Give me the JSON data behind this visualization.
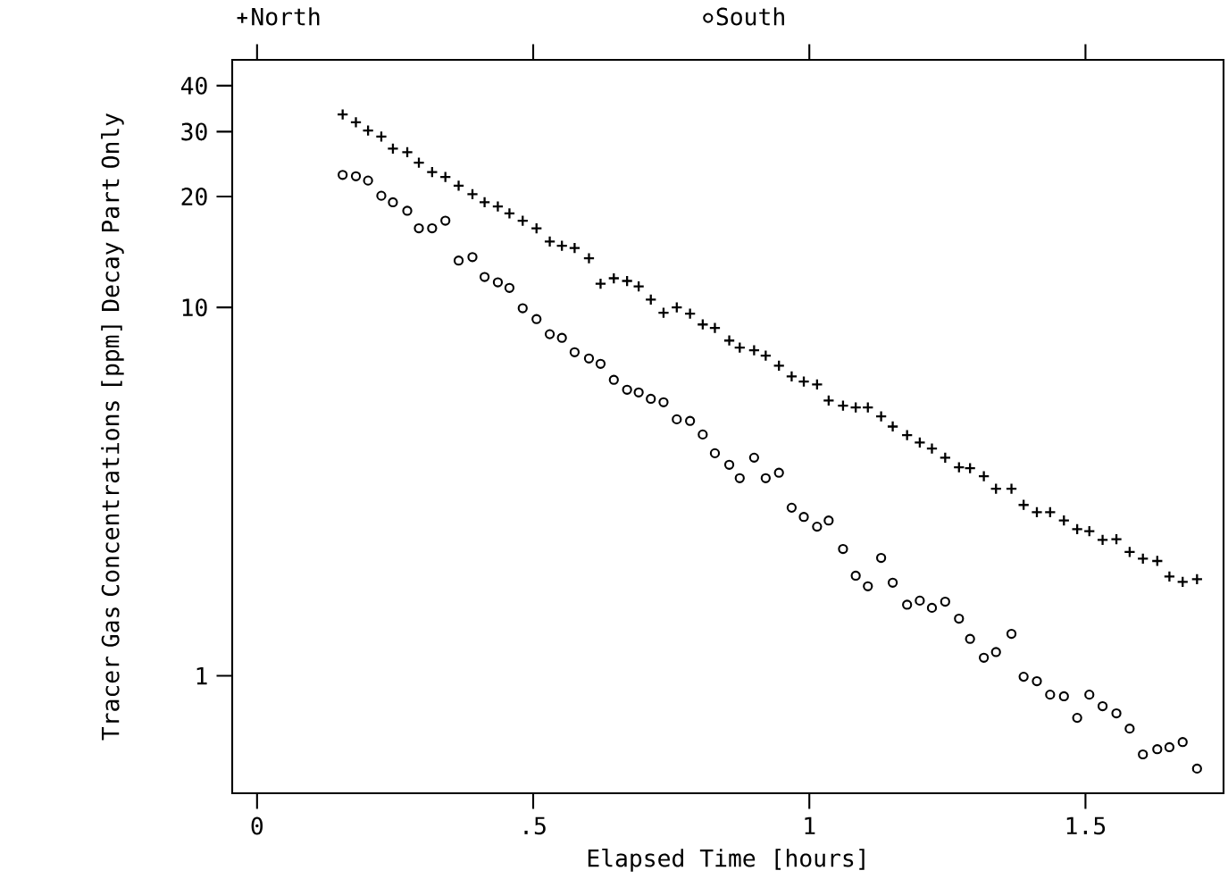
{
  "chart_data": {
    "type": "scatter",
    "xlabel": "Elapsed Time [hours]",
    "ylabel": "Tracer Gas Concentrations [ppm] Decay Part Only",
    "log": "y",
    "legend": "top",
    "grid": false,
    "xlim": [
      -0.045,
      1.75
    ],
    "ylim": [
      0.48,
      47
    ],
    "xticks": [
      0,
      {
        "value": 0.5,
        "label": ".5"
      },
      1,
      {
        "value": 1.5,
        "label": "1.5"
      }
    ],
    "yticks": [
      1,
      10,
      20,
      30,
      40
    ],
    "x": [
      0.155,
      0.179,
      0.201,
      0.225,
      0.246,
      0.272,
      0.293,
      0.317,
      0.341,
      0.365,
      0.39,
      0.412,
      0.436,
      0.457,
      0.481,
      0.506,
      0.53,
      0.552,
      0.575,
      0.601,
      0.622,
      0.646,
      0.67,
      0.691,
      0.713,
      0.736,
      0.76,
      0.784,
      0.807,
      0.829,
      0.855,
      0.874,
      0.9,
      0.921,
      0.945,
      0.968,
      0.99,
      1.014,
      1.035,
      1.061,
      1.084,
      1.106,
      1.13,
      1.151,
      1.177,
      1.2,
      1.222,
      1.246,
      1.271,
      1.291,
      1.316,
      1.338,
      1.366,
      1.388,
      1.412,
      1.436,
      1.461,
      1.485,
      1.507,
      1.531,
      1.556,
      1.58,
      1.604,
      1.63,
      1.652,
      1.676,
      1.702
    ],
    "series": [
      {
        "name": "North",
        "color": "#000000",
        "marker": "cross",
        "values": [
          33.4,
          31.8,
          30.2,
          29.1,
          27.0,
          26.4,
          24.7,
          23.3,
          22.6,
          21.4,
          20.3,
          19.3,
          18.8,
          18.0,
          17.2,
          16.4,
          15.1,
          14.7,
          14.5,
          13.6,
          11.6,
          12.0,
          11.8,
          11.4,
          10.5,
          9.67,
          10.0,
          9.62,
          8.99,
          8.8,
          8.13,
          7.78,
          7.65,
          7.4,
          6.95,
          6.5,
          6.29,
          6.18,
          5.59,
          5.41,
          5.35,
          5.35,
          5.06,
          4.75,
          4.5,
          4.3,
          4.14,
          3.91,
          3.68,
          3.66,
          3.48,
          3.22,
          3.22,
          2.91,
          2.78,
          2.78,
          2.64,
          2.5,
          2.47,
          2.34,
          2.35,
          2.17,
          2.08,
          2.05,
          1.86,
          1.8,
          1.83
        ]
      },
      {
        "name": "South",
        "color": "#000000",
        "marker": "circle",
        "values": [
          22.9,
          22.7,
          22.1,
          20.1,
          19.3,
          18.3,
          16.4,
          16.4,
          17.2,
          13.4,
          13.7,
          12.1,
          11.7,
          11.3,
          9.95,
          9.3,
          8.46,
          8.27,
          7.56,
          7.27,
          7.03,
          6.36,
          5.98,
          5.88,
          5.65,
          5.53,
          4.97,
          4.92,
          4.52,
          4.02,
          3.74,
          3.44,
          3.91,
          3.44,
          3.56,
          2.86,
          2.7,
          2.54,
          2.64,
          2.21,
          1.87,
          1.75,
          2.09,
          1.79,
          1.56,
          1.6,
          1.53,
          1.59,
          1.43,
          1.26,
          1.12,
          1.16,
          1.3,
          0.994,
          0.967,
          0.889,
          0.88,
          0.769,
          0.889,
          0.827,
          0.791,
          0.719,
          0.612,
          0.632,
          0.64,
          0.661,
          0.56
        ]
      }
    ]
  }
}
